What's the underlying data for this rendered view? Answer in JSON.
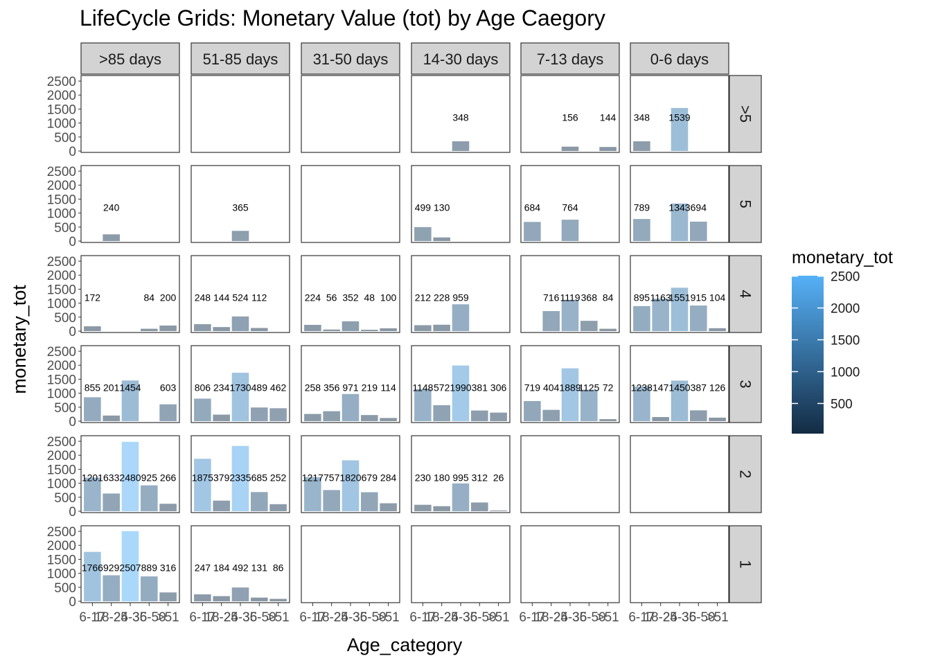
{
  "chart_data": {
    "type": "bar",
    "title": "LifeCycle Grids: Monetary Value (tot) by Age Caegory",
    "xlabel": "Age_category",
    "ylabel": "monetary_tot",
    "categories": [
      "6-17",
      "18-24",
      "25-35",
      "36-50",
      ">51"
    ],
    "column_facets": [
      ">85 days",
      "51-85 days",
      "31-50 days",
      "14-30 days",
      "7-13 days",
      "0-6 days"
    ],
    "row_facets": [
      ">5",
      "5",
      "4",
      "3",
      "2",
      "1"
    ],
    "y_ticks": [
      0,
      500,
      1000,
      1500,
      2000,
      2500
    ],
    "ylim": [
      0,
      2600
    ],
    "label_y": 1200,
    "fill_scale": {
      "low": "#132B43",
      "high": "#56B1F7",
      "alpha": 0.5,
      "min": 26,
      "max": 2507
    },
    "legend": {
      "title": "monetary_tot",
      "placement": "right",
      "ticks": [
        500,
        1000,
        1500,
        2000,
        2500
      ]
    },
    "panels": [
      [
        [
          null,
          null,
          null,
          null,
          null
        ],
        [
          null,
          null,
          null,
          null,
          null
        ],
        [
          null,
          null,
          null,
          null,
          null
        ],
        [
          null,
          null,
          348,
          null,
          null
        ],
        [
          null,
          null,
          156,
          null,
          144
        ],
        [
          348,
          null,
          1539,
          null,
          null
        ]
      ],
      [
        [
          null,
          240,
          null,
          null,
          null
        ],
        [
          null,
          null,
          365,
          null,
          null
        ],
        [
          null,
          null,
          null,
          null,
          null
        ],
        [
          499,
          130,
          null,
          null,
          null
        ],
        [
          684,
          null,
          764,
          null,
          null
        ],
        [
          789,
          null,
          1343,
          694,
          null
        ]
      ],
      [
        [
          172,
          null,
          null,
          84,
          200
        ],
        [
          248,
          144,
          524,
          112,
          null
        ],
        [
          224,
          56,
          352,
          48,
          100
        ],
        [
          212,
          228,
          959,
          null,
          null
        ],
        [
          null,
          716,
          1119,
          368,
          84
        ],
        [
          895,
          1163,
          1551,
          915,
          104
        ]
      ],
      [
        [
          855,
          201,
          1454,
          null,
          603
        ],
        [
          806,
          234,
          1730,
          489,
          462
        ],
        [
          258,
          356,
          971,
          219,
          114
        ],
        [
          1148,
          572,
          1990,
          381,
          306
        ],
        [
          719,
          404,
          1889,
          1125,
          72
        ],
        [
          1238,
          147,
          1450,
          387,
          126
        ]
      ],
      [
        [
          1201,
          633,
          2480,
          925,
          266
        ],
        [
          1875,
          379,
          2335,
          685,
          252
        ],
        [
          1217,
          757,
          1820,
          679,
          284
        ],
        [
          230,
          180,
          995,
          312,
          26
        ],
        [
          null,
          null,
          null,
          null,
          null
        ],
        [
          null,
          null,
          null,
          null,
          null
        ]
      ],
      [
        [
          1766,
          929,
          2507,
          889,
          316
        ],
        [
          247,
          184,
          492,
          131,
          86
        ],
        [
          null,
          null,
          null,
          null,
          null
        ],
        [
          null,
          null,
          null,
          null,
          null
        ],
        [
          null,
          null,
          null,
          null,
          null
        ],
        [
          null,
          null,
          null,
          null,
          null
        ]
      ]
    ]
  }
}
